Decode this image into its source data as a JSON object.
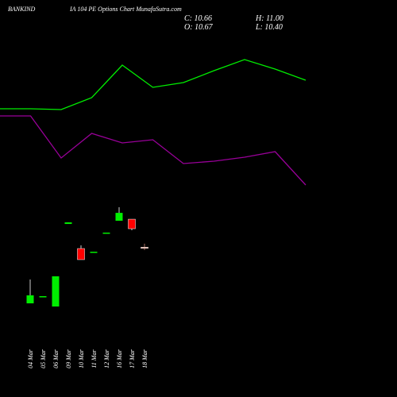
{
  "chart_data": {
    "type": "candlestick",
    "title": "BANKIND",
    "subtitle": "IA 104 PE Options  Chart MunafaSutra.com",
    "ohlc": [
      {
        "label": "C:",
        "value": 10.66
      },
      {
        "label": "H:",
        "value": 11.0
      },
      {
        "label": "O:",
        "value": 10.67
      },
      {
        "label": "L:",
        "value": 10.4
      }
    ],
    "categories": [
      "04 Mar",
      "05 Mar",
      "06 Mar",
      "09 Mar",
      "10 Mar",
      "11 Mar",
      "12 Mar",
      "16 Mar",
      "17 Mar",
      "18 Mar"
    ],
    "open": [
      5.35,
      6.03,
      5.05,
      12.87,
      10.54,
      10.24,
      12.05,
      13.17,
      13.32,
      10.67
    ],
    "high": [
      7.61,
      6.03,
      7.91,
      13.02,
      10.84,
      10.24,
      12.05,
      14.45,
      13.32,
      11.0
    ],
    "low": [
      5.35,
      6.03,
      5.05,
      12.87,
      9.49,
      10.24,
      12.05,
      13.17,
      12.27,
      10.4
    ],
    "close": [
      6.11,
      6.03,
      7.91,
      13.02,
      9.49,
      10.24,
      12.05,
      13.92,
      12.42,
      10.66
    ],
    "up_color": "#00ee00",
    "down_color": "#ff0000",
    "ylim": [
      4,
      15.28
    ],
    "lines": {
      "x": [
        0,
        1,
        2,
        3,
        4,
        5,
        6,
        7,
        8,
        9,
        10
      ],
      "xlim": [
        0,
        10
      ],
      "y2lim": [
        0,
        100
      ],
      "series": [
        {
          "color": "#00ee00",
          "axis": "y2",
          "values": [
            56.5,
            56.5,
            56,
            63.5,
            84,
            70,
            73,
            80.5,
            87.5,
            81.5,
            74.5
          ]
        },
        {
          "color": "#990099",
          "axis": "y2",
          "values": [
            52,
            52,
            25.5,
            41,
            35,
            37,
            22,
            23.5,
            26,
            29.5,
            8.5
          ]
        }
      ]
    }
  }
}
